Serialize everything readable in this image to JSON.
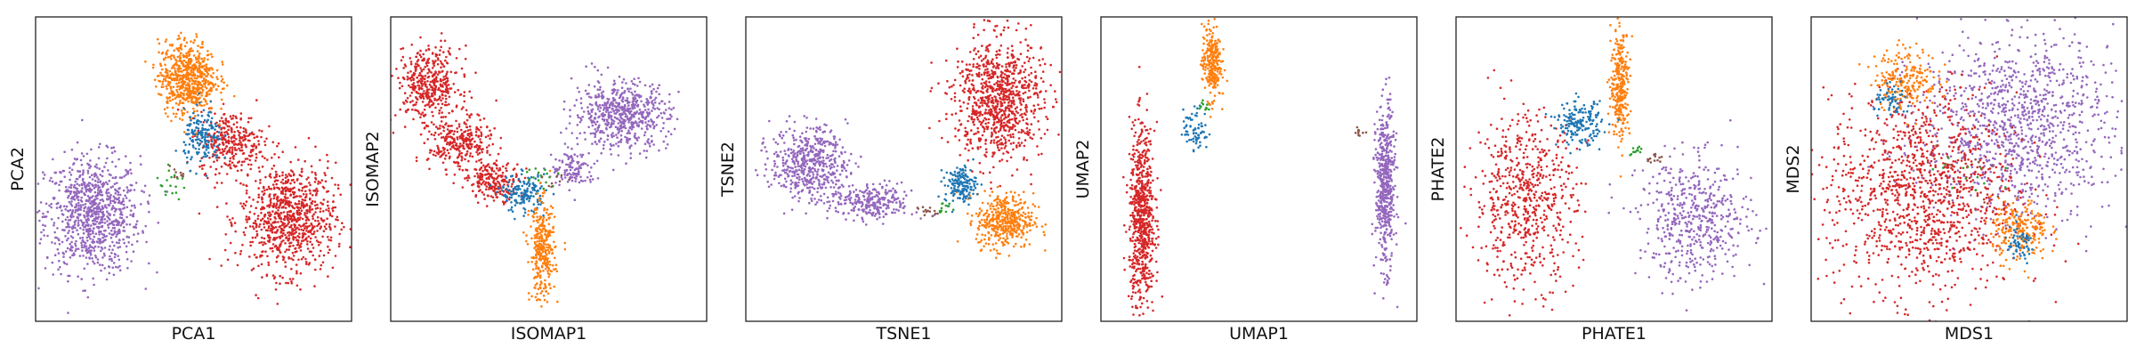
{
  "colors": {
    "blue": "#1f77b4",
    "orange": "#ff7f0e",
    "green": "#2ca02c",
    "red": "#d62728",
    "purple": "#9467bd",
    "brown": "#8c564b",
    "frame": "#222222",
    "background": "#ffffff"
  },
  "chart_data": [
    {
      "type": "scatter",
      "xlabel": "PCA1",
      "ylabel": "PCA2",
      "grid": false,
      "ticks": false,
      "clusters": [
        {
          "color": "purple",
          "cx": 0.18,
          "cy": 0.35,
          "rx": 0.15,
          "ry": 0.19,
          "n": 900
        },
        {
          "color": "red",
          "cx": 0.8,
          "cy": 0.34,
          "rx": 0.15,
          "ry": 0.18,
          "n": 850
        },
        {
          "color": "red",
          "cx": 0.62,
          "cy": 0.59,
          "rx": 0.1,
          "ry": 0.1,
          "n": 300
        },
        {
          "color": "orange",
          "cx": 0.48,
          "cy": 0.8,
          "rx": 0.09,
          "ry": 0.12,
          "n": 650
        },
        {
          "color": "blue",
          "cx": 0.53,
          "cy": 0.6,
          "rx": 0.06,
          "ry": 0.09,
          "n": 170
        },
        {
          "color": "green",
          "cx": 0.43,
          "cy": 0.45,
          "rx": 0.05,
          "ry": 0.05,
          "n": 18
        },
        {
          "color": "brown",
          "cx": 0.45,
          "cy": 0.47,
          "rx": 0.04,
          "ry": 0.04,
          "n": 10
        }
      ]
    },
    {
      "type": "scatter",
      "xlabel": "ISOMAP1",
      "ylabel": "ISOMAP2",
      "grid": false,
      "ticks": false,
      "clusters": [
        {
          "color": "red",
          "cx": 0.12,
          "cy": 0.78,
          "rx": 0.1,
          "ry": 0.12,
          "n": 420
        },
        {
          "color": "red",
          "cx": 0.22,
          "cy": 0.58,
          "rx": 0.1,
          "ry": 0.09,
          "n": 300
        },
        {
          "color": "red",
          "cx": 0.33,
          "cy": 0.46,
          "rx": 0.08,
          "ry": 0.06,
          "n": 200
        },
        {
          "color": "purple",
          "cx": 0.73,
          "cy": 0.68,
          "rx": 0.15,
          "ry": 0.11,
          "n": 600
        },
        {
          "color": "purple",
          "cx": 0.58,
          "cy": 0.5,
          "rx": 0.07,
          "ry": 0.06,
          "n": 120
        },
        {
          "color": "blue",
          "cx": 0.42,
          "cy": 0.42,
          "rx": 0.07,
          "ry": 0.06,
          "n": 160
        },
        {
          "color": "orange",
          "cx": 0.48,
          "cy": 0.23,
          "rx": 0.04,
          "ry": 0.16,
          "n": 320
        },
        {
          "color": "green",
          "cx": 0.48,
          "cy": 0.48,
          "rx": 0.05,
          "ry": 0.04,
          "n": 16
        },
        {
          "color": "brown",
          "cx": 0.52,
          "cy": 0.47,
          "rx": 0.04,
          "ry": 0.03,
          "n": 8
        }
      ]
    },
    {
      "type": "scatter",
      "xlabel": "TSNE1",
      "ylabel": "TSNE2",
      "grid": false,
      "ticks": false,
      "clusters": [
        {
          "color": "red",
          "cx": 0.8,
          "cy": 0.73,
          "rx": 0.14,
          "ry": 0.2,
          "n": 900
        },
        {
          "color": "purple",
          "cx": 0.2,
          "cy": 0.52,
          "rx": 0.12,
          "ry": 0.12,
          "n": 520
        },
        {
          "color": "purple",
          "cx": 0.4,
          "cy": 0.39,
          "rx": 0.13,
          "ry": 0.06,
          "n": 260
        },
        {
          "color": "orange",
          "cx": 0.82,
          "cy": 0.33,
          "rx": 0.09,
          "ry": 0.09,
          "n": 420
        },
        {
          "color": "blue",
          "cx": 0.68,
          "cy": 0.45,
          "rx": 0.05,
          "ry": 0.06,
          "n": 160
        },
        {
          "color": "brown",
          "cx": 0.57,
          "cy": 0.36,
          "rx": 0.03,
          "ry": 0.02,
          "n": 14
        },
        {
          "color": "green",
          "cx": 0.63,
          "cy": 0.37,
          "rx": 0.03,
          "ry": 0.02,
          "n": 12
        }
      ]
    },
    {
      "type": "scatter",
      "xlabel": "UMAP1",
      "ylabel": "UMAP2",
      "grid": false,
      "ticks": false,
      "clusters": [
        {
          "color": "orange",
          "cx": 0.35,
          "cy": 0.85,
          "rx": 0.03,
          "ry": 0.12,
          "n": 260
        },
        {
          "color": "blue",
          "cx": 0.3,
          "cy": 0.63,
          "rx": 0.04,
          "ry": 0.07,
          "n": 70
        },
        {
          "color": "red",
          "cx": 0.13,
          "cy": 0.34,
          "rx": 0.04,
          "ry": 0.3,
          "n": 700
        },
        {
          "color": "purple",
          "cx": 0.9,
          "cy": 0.44,
          "rx": 0.03,
          "ry": 0.26,
          "n": 520
        },
        {
          "color": "green",
          "cx": 0.33,
          "cy": 0.71,
          "rx": 0.02,
          "ry": 0.02,
          "n": 10
        },
        {
          "color": "brown",
          "cx": 0.82,
          "cy": 0.62,
          "rx": 0.02,
          "ry": 0.02,
          "n": 10
        }
      ]
    },
    {
      "type": "scatter",
      "xlabel": "PHATE1",
      "ylabel": "PHATE2",
      "grid": false,
      "ticks": false,
      "clusters": [
        {
          "color": "red",
          "cx": 0.22,
          "cy": 0.4,
          "rx": 0.16,
          "ry": 0.28,
          "n": 620
        },
        {
          "color": "orange",
          "cx": 0.52,
          "cy": 0.78,
          "rx": 0.03,
          "ry": 0.18,
          "n": 300
        },
        {
          "color": "blue",
          "cx": 0.39,
          "cy": 0.65,
          "rx": 0.07,
          "ry": 0.07,
          "n": 180
        },
        {
          "color": "purple",
          "cx": 0.76,
          "cy": 0.33,
          "rx": 0.18,
          "ry": 0.2,
          "n": 500
        },
        {
          "color": "brown",
          "cx": 0.62,
          "cy": 0.54,
          "rx": 0.03,
          "ry": 0.02,
          "n": 14
        },
        {
          "color": "green",
          "cx": 0.57,
          "cy": 0.56,
          "rx": 0.03,
          "ry": 0.02,
          "n": 12
        }
      ]
    },
    {
      "type": "scatter",
      "xlabel": "MDS1",
      "ylabel": "MDS2",
      "grid": false,
      "ticks": false,
      "clusters": [
        {
          "color": "purple",
          "cx": 0.65,
          "cy": 0.65,
          "rx": 0.3,
          "ry": 0.3,
          "n": 1100
        },
        {
          "color": "red",
          "cx": 0.35,
          "cy": 0.42,
          "rx": 0.3,
          "ry": 0.33,
          "n": 1200
        },
        {
          "color": "orange",
          "cx": 0.3,
          "cy": 0.8,
          "rx": 0.1,
          "ry": 0.1,
          "n": 220
        },
        {
          "color": "orange",
          "cx": 0.66,
          "cy": 0.3,
          "rx": 0.09,
          "ry": 0.1,
          "n": 220
        },
        {
          "color": "blue",
          "cx": 0.26,
          "cy": 0.72,
          "rx": 0.06,
          "ry": 0.05,
          "n": 60
        },
        {
          "color": "blue",
          "cx": 0.66,
          "cy": 0.25,
          "rx": 0.05,
          "ry": 0.06,
          "n": 60
        },
        {
          "color": "green",
          "cx": 0.48,
          "cy": 0.48,
          "rx": 0.12,
          "ry": 0.12,
          "n": 14
        },
        {
          "color": "brown",
          "cx": 0.5,
          "cy": 0.5,
          "rx": 0.12,
          "ry": 0.12,
          "n": 10
        }
      ]
    }
  ]
}
